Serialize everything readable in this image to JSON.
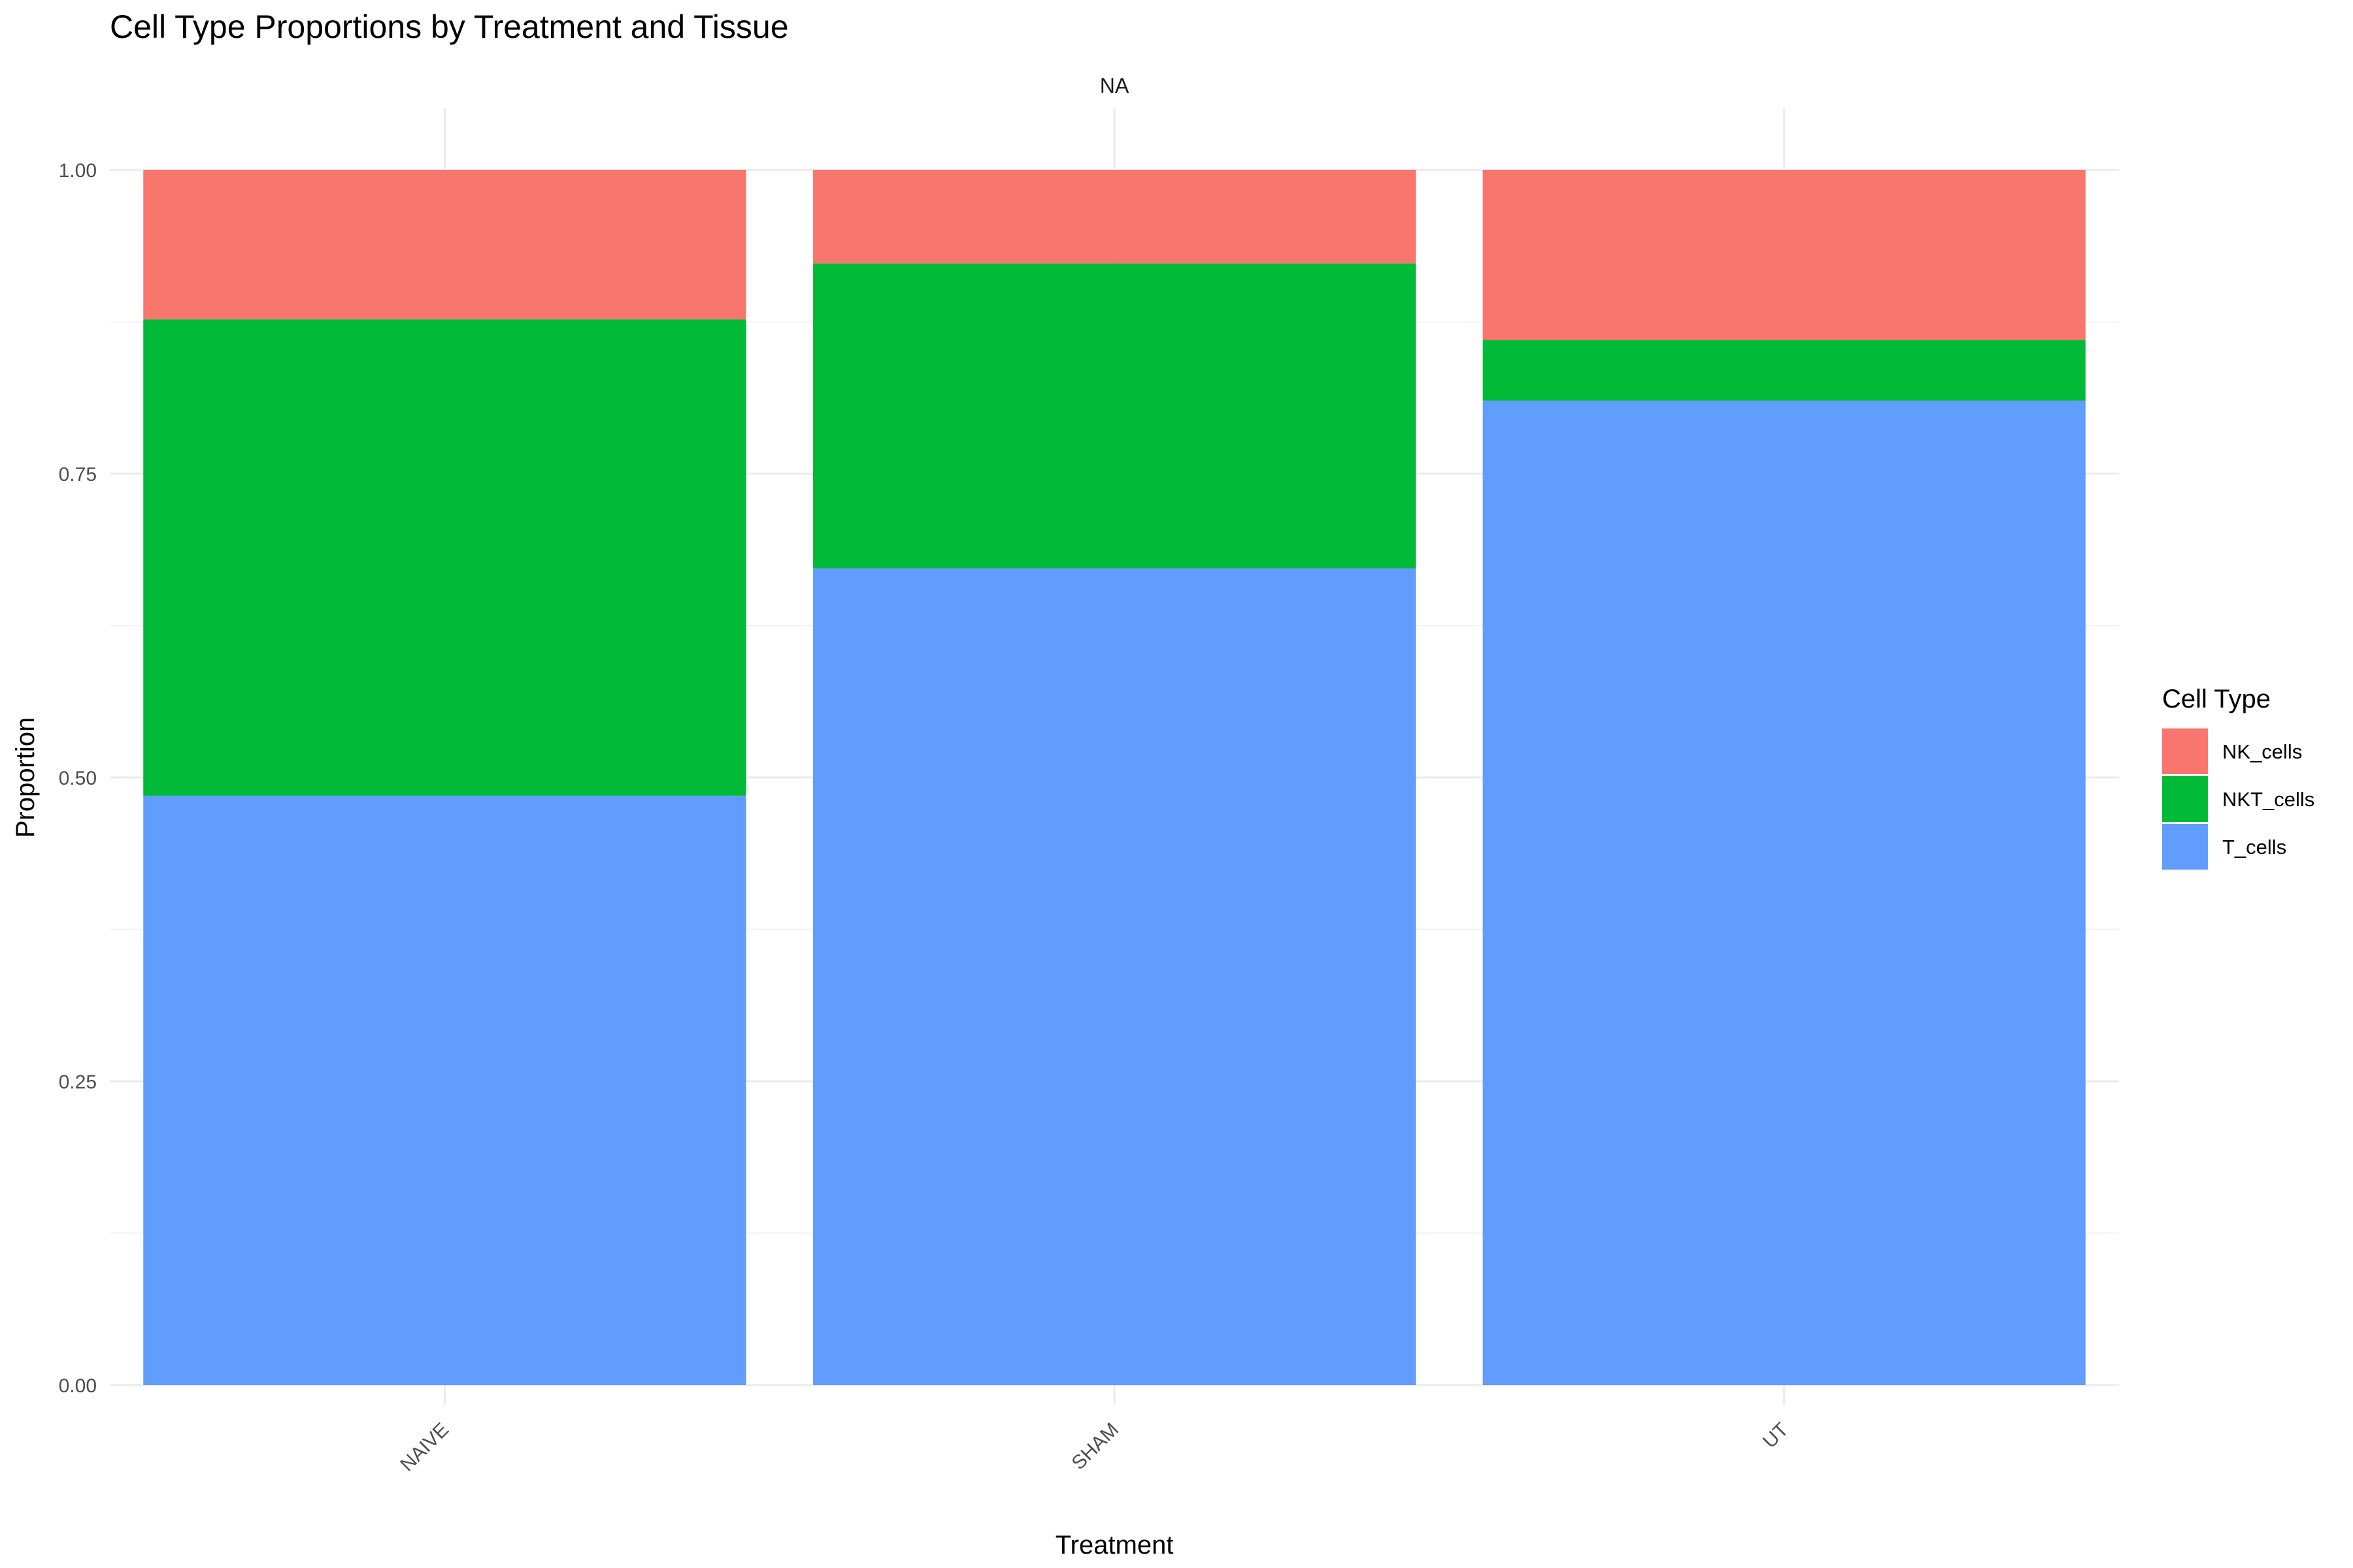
{
  "chart_data": {
    "type": "bar",
    "stacked": true,
    "title": "Cell Type Proportions by Treatment and Tissue",
    "facet_label": "NA",
    "xlabel": "Treatment",
    "ylabel": "Proportion",
    "categories": [
      "NAIVE",
      "SHAM",
      "UT"
    ],
    "ylim": [
      0,
      1
    ],
    "yticks": [
      "0.00",
      "0.25",
      "0.50",
      "0.75",
      "1.00"
    ],
    "grid": true,
    "legend": {
      "title": "Cell Type",
      "placement": "right"
    },
    "series": [
      {
        "name": "NK_cells",
        "color": "#F8766D",
        "values": [
          0.123,
          0.077,
          0.14
        ]
      },
      {
        "name": "NKT_cells",
        "color": "#00BA38",
        "values": [
          0.392,
          0.251,
          0.05
        ]
      },
      {
        "name": "T_cells",
        "color": "#619CFF",
        "values": [
          0.485,
          0.672,
          0.81
        ]
      }
    ]
  }
}
